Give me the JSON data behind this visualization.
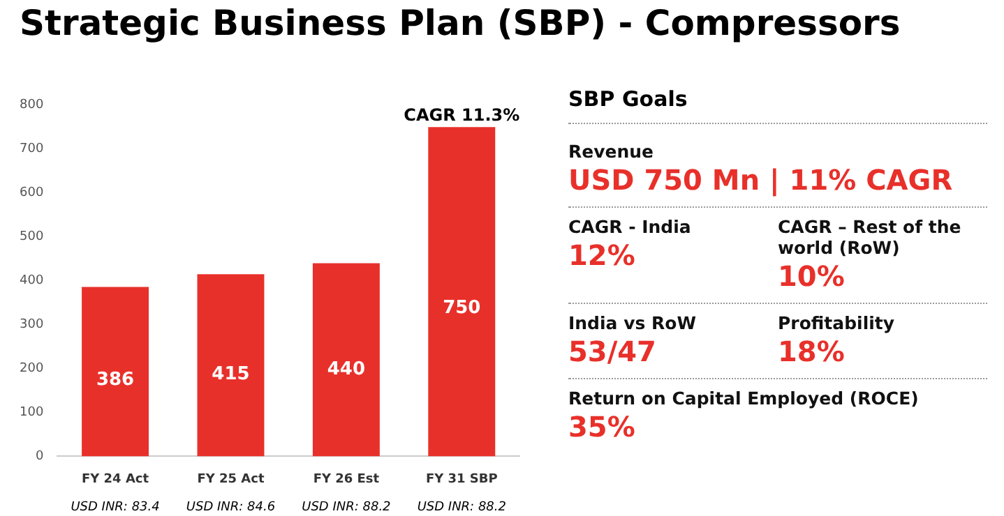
{
  "chart_data": [
    {
      "type": "bar",
      "title": "Strategic Business Plan (SBP) - Compressors",
      "categories": [
        "FY 24 Act",
        "FY 25 Act",
        "FY 26 Est",
        "FY 31 SBP"
      ],
      "values": [
        386,
        415,
        440,
        750
      ],
      "color": "#e8302a",
      "ylim": [
        0,
        800
      ],
      "yticks": [
        0,
        100,
        200,
        300,
        400,
        500,
        600,
        700,
        800
      ],
      "grid": false,
      "legend": false,
      "data_labels": true,
      "annotations": [
        {
          "text": "CAGR 11.3%",
          "x": "FY 31 SBP",
          "y": 750
        },
        "USD INR: 83.4",
        "USD INR: 84.6",
        "USD INR: 88.2",
        "USD INR: 88.2"
      ]
    },
    {
      "type": "other",
      "title": "SBP Goals",
      "annotations": [
        "Revenue",
        "USD 750 Mn | 11% CAGR",
        "CAGR - India",
        "12%",
        "CAGR – Rest of the world (RoW)",
        "10%",
        "India vs RoW",
        "53/47",
        "Profitability",
        "18%",
        "Return on Capital Employed (ROCE)",
        "35%"
      ]
    }
  ]
}
